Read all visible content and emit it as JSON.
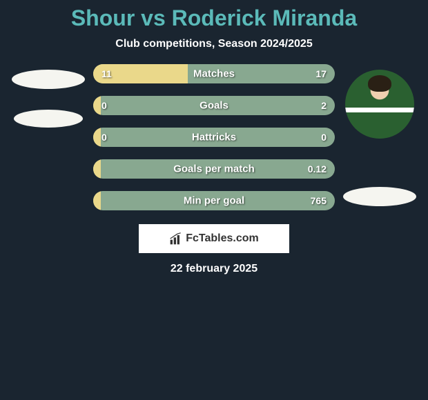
{
  "title": "Shour vs Roderick Miranda",
  "subtitle": "Club competitions, Season 2024/2025",
  "footer_date": "22 february 2025",
  "brand": "FcTables.com",
  "colors": {
    "background": "#1a2530",
    "title": "#5bbab9",
    "bar_left": "#ead88a",
    "bar_right": "#88a890",
    "badge": "#f5f5f0",
    "text": "#ffffff"
  },
  "stats": [
    {
      "label": "Matches",
      "left_value": "11",
      "right_value": "17",
      "left_pct": 39
    },
    {
      "label": "Goals",
      "left_value": "0",
      "right_value": "2",
      "left_pct": 3
    },
    {
      "label": "Hattricks",
      "left_value": "0",
      "right_value": "0",
      "left_pct": 3
    },
    {
      "label": "Goals per match",
      "left_value": "",
      "right_value": "0.12",
      "left_pct": 3
    },
    {
      "label": "Min per goal",
      "left_value": "",
      "right_value": "765",
      "left_pct": 3
    }
  ]
}
